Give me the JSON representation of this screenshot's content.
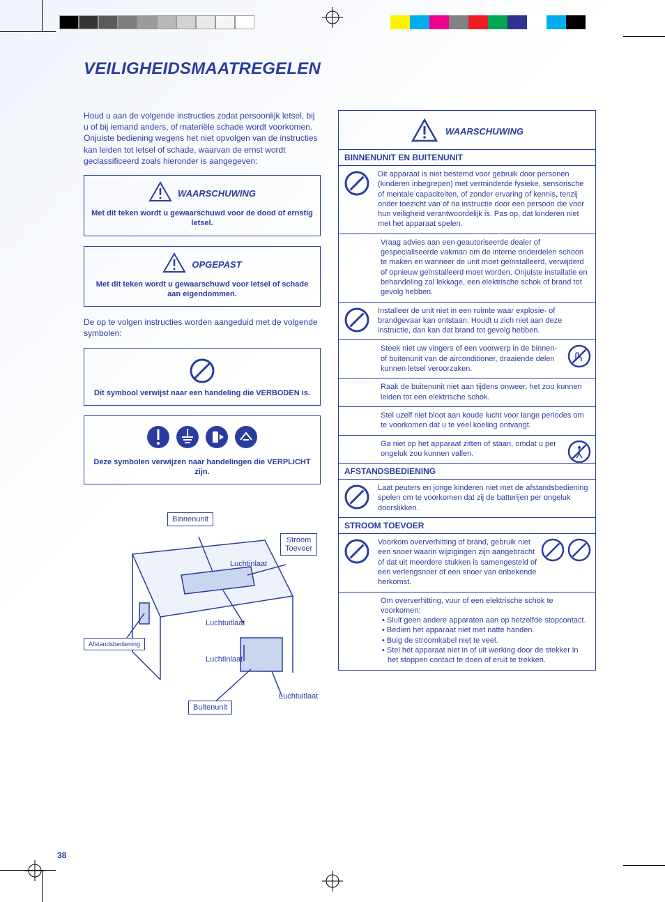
{
  "title": "VEILIGHEIDSMAATREGELEN",
  "page_number": "38",
  "colors": {
    "primary": "#2a3d9e",
    "bg_tint": "#f0f4fb",
    "bar_left": [
      "#000000",
      "#353535",
      "#5b5b5b",
      "#7d7d7d",
      "#9c9c9c",
      "#b8b8b8",
      "#d2d2d2",
      "#e9e9e9",
      "#f5f5f5",
      "#ffffff"
    ],
    "bar_right": [
      "#fff200",
      "#00aeef",
      "#ec008c",
      "#808285",
      "#ed1c24",
      "#00a651",
      "#2e3192",
      "#ffffff",
      "#00aeef",
      "#000000"
    ]
  },
  "left": {
    "intro": "Houd u aan de volgende instructies zodat persoonlijk letsel, bij u of bij iemand anders, of materiële schade wordt voorkomen.\nOnjuiste bediening wegens het niet opvolgen van de instructies kan leiden tot letsel of schade, waarvan de ernst wordt geclassificeerd zoals hieronder is aangegeven:",
    "warn_label": "WAARSCHUWING",
    "warn_text": "Met dit teken wordt u gewaarschuwd voor de dood of ernstig letsel.",
    "caution_label": "OPGEPAST",
    "caution_text": "Met dit teken wordt u gewaarschuwd voor letsel of schade aan eigendommen.",
    "sym_intro": "De op te volgen instructies worden aangeduid met de volgende symbolen:",
    "sym_forbidden": "Dit symbool verwijst naar een handeling die VERBODEN is.",
    "sym_mandatory": "Deze symbolen verwijzen naar handelingen die VERPLICHT zijn."
  },
  "diagram": {
    "binnenunit": "Binnenunit",
    "luchtinlaat": "Luchtinlaat",
    "luchtuitlaat": "Luchtuitlaat",
    "stroom_toevoer": "Stroom\nToevoer",
    "afstandsbediening": "Afstandsbediening",
    "buitenunit": "Buitenunit"
  },
  "right": {
    "head_label": "WAARSCHUWING",
    "sections": [
      {
        "title": "BINNENUNIT EN BUITENUNIT",
        "rows": [
          {
            "icon": "prohibit",
            "text": "Dit apparaat is niet bestemd voor gebruik door personen (kinderen inbegrepen) met verminderde fysieke, sensorische of mentale capaciteiten, of zonder ervaring of kennis, tenzij onder toezicht van of na instructie door een persoon die voor hun veiligheid verantwoordelijk is. Pas op, dat kinderen niet met het apparaat spelen."
          },
          {
            "icon": "",
            "text": "Vraag advies aan een geautoriseerde dealer of gespecialiseerde vakman om de interne onderdelen schoon te maken en  wanneer de unit moet geïnstalleerd, verwijderd of opnieuw geïnstalleerd moet worden. Onjuiste installatie en behandeling zal lekkage, een elektrische schok of brand tot gevolg hebben."
          },
          {
            "icon": "prohibit",
            "text": "Installeer de unit niet in een ruimte waar explosie- of brandgevaar kan ontstaan. Houdt u zich niet aan deze instructie, dan kan dat brand tot gevolg hebben."
          },
          {
            "icon": "",
            "text": "Steek niet uw vingers of een voorwerp in de binnen- of buitenunit van de airconditioner, draaiende delen kunnen letsel veroorzaken.",
            "right_icon": "no-touch"
          },
          {
            "icon": "",
            "text": "Raak de buitenunit niet aan tijdens onweer, het zou kunnen leiden tot een elektrische schok."
          },
          {
            "icon": "",
            "text": "Stel uzelf niet bloot aan koude lucht voor lange periodes om te voorkomen dat u te veel koeling ontvangt."
          },
          {
            "icon": "",
            "text": "Ga niet op het apparaat zitten of staan, omdat u per ongeluk zou kunnen vallen.",
            "right_icon": "no-step"
          }
        ]
      },
      {
        "title": "AFSTANDSBEDIENING",
        "rows": [
          {
            "icon": "prohibit",
            "text": "Laat peuters en jonge kinderen niet met de afstandsbediening spelen om te voorkomen dat zij de batterijen per ongeluk doorslikken."
          }
        ]
      },
      {
        "title": "STROOM TOEVOER",
        "rows": [
          {
            "icon": "prohibit",
            "text": "Voorkom oververhitting of brand, gebruik niet een snoer waarin wijzigingen zijn aangebracht of dat uit meerdere stukken is samengesteld of een verlengsnoer of een snoer van onbekende herkomst.",
            "right_icon": "dual"
          },
          {
            "icon": "",
            "text_lead": "Om oververhitting, vuur of een elektrische schok te voorkomen:",
            "bullets": [
              "Sluit geen andere apparaten aan op hetzelfde stopcontact.",
              "Bedien het apparaat niet met natte handen.",
              "Buig de stroomkabel niet te veel.",
              "Stel het apparaat niet in of uit werking door de stekker in het stoppen contact te doen of eruit te trekken."
            ]
          }
        ]
      }
    ]
  }
}
